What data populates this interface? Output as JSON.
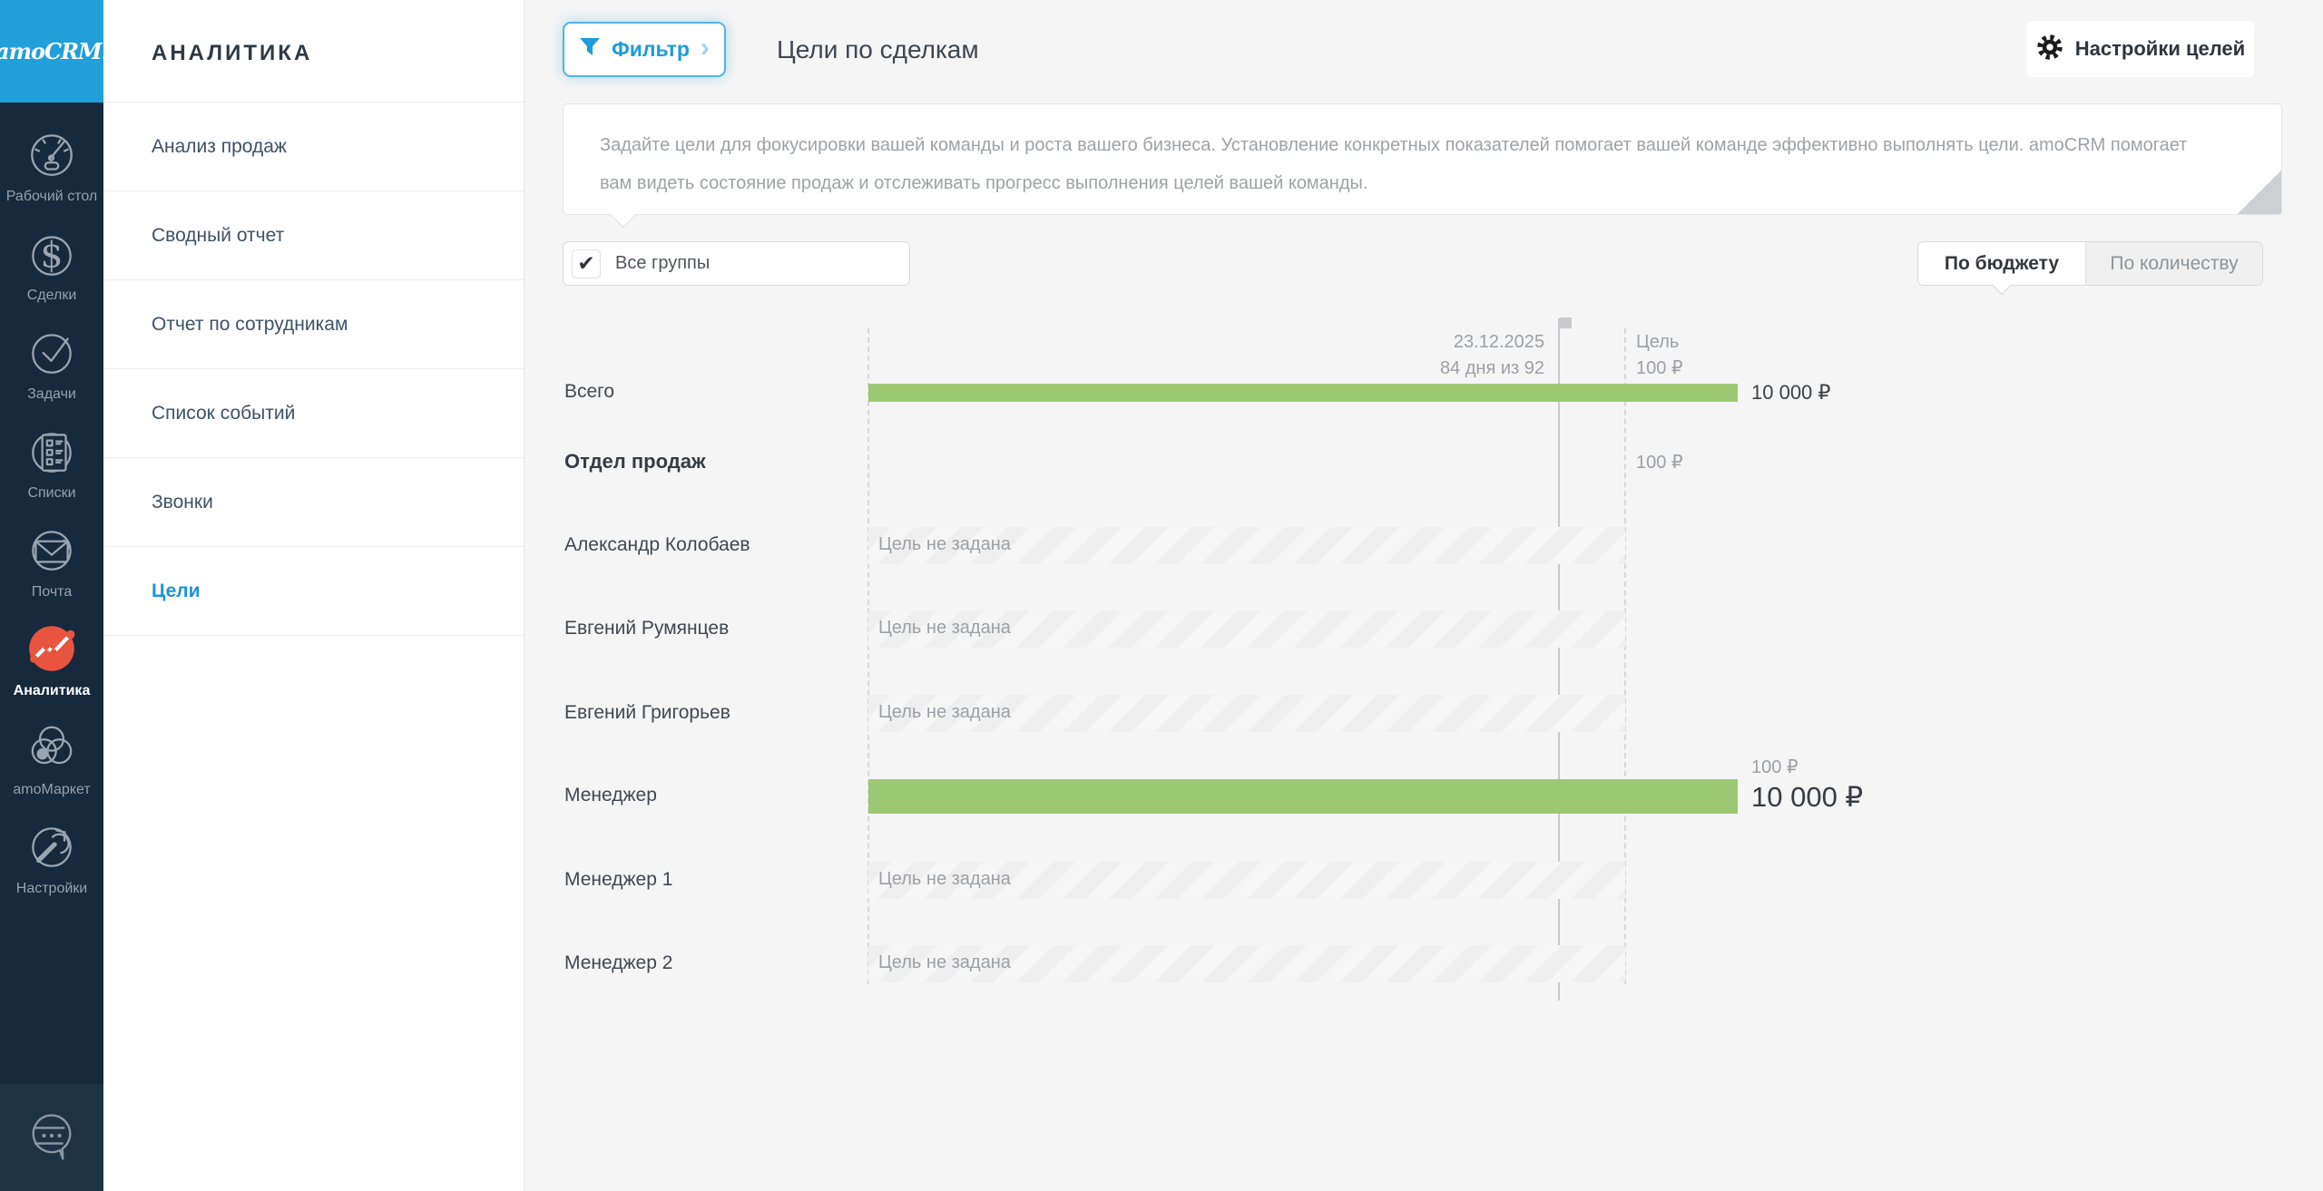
{
  "app": {
    "logo_text": "amoCRM."
  },
  "nav": {
    "items": [
      {
        "icon": "dashboard-icon",
        "label": "Рабочий стол",
        "active": false
      },
      {
        "icon": "deals-icon",
        "label": "Сделки",
        "active": false
      },
      {
        "icon": "tasks-icon",
        "label": "Задачи",
        "active": false
      },
      {
        "icon": "lists-icon",
        "label": "Списки",
        "active": false
      },
      {
        "icon": "mail-icon",
        "label": "Почта",
        "active": false
      },
      {
        "icon": "analytics-icon",
        "label": "Аналитика",
        "active": true
      },
      {
        "icon": "market-icon",
        "label": "amoМаркет",
        "active": false
      },
      {
        "icon": "settings-icon",
        "label": "Настройки",
        "active": false
      }
    ]
  },
  "sidebar": {
    "title": "АНАЛИТИКА",
    "items": [
      {
        "label": "Анализ продаж",
        "active": false
      },
      {
        "label": "Сводный отчет",
        "active": false
      },
      {
        "label": "Отчет по сотрудникам",
        "active": false
      },
      {
        "label": "Список событий",
        "active": false
      },
      {
        "label": "Звонки",
        "active": false
      },
      {
        "label": "Цели",
        "active": true
      }
    ]
  },
  "toolbar": {
    "filter_label": "Фильтр",
    "page_title": "Цели по сделкам",
    "settings_label": "Настройки целей"
  },
  "info": {
    "text": "Задайте цели для фокусировки вашей команды и роста вашего бизнеса. Установление конкретных показателей помогает вашей команде эффективно выполнять цели. amoCRM помогает вам видеть состояние продаж и отслеживать прогресс выполнения целей вашей команды."
  },
  "controls": {
    "groups_label": "Все группы",
    "checkbox_glyph": "✔",
    "toggle_budget": "По бюджету",
    "toggle_quantity": "По количеству"
  },
  "chart_data": {
    "type": "bar",
    "orientation": "horizontal",
    "mode": "По бюджету",
    "currency": "₽",
    "today_marker": {
      "date": "23.12.2025",
      "progress": "84 дня из 92"
    },
    "goal_line": {
      "label": "Цель",
      "value_label": "100 ₽",
      "value": 100
    },
    "rows": [
      {
        "name": "Всего",
        "kind": "total",
        "value": 10000,
        "value_label": "10 000 ₽"
      },
      {
        "name": "Отдел продаж",
        "kind": "group",
        "goal": 100,
        "goal_label": "100 ₽"
      },
      {
        "name": "Александр Колобаев",
        "kind": "no-goal",
        "placeholder": "Цель не задана"
      },
      {
        "name": "Евгений Румянцев",
        "kind": "no-goal",
        "placeholder": "Цель не задана"
      },
      {
        "name": "Евгений Григорьев",
        "kind": "no-goal",
        "placeholder": "Цель не задана"
      },
      {
        "name": "Менеджер",
        "kind": "person-value",
        "value": 10000,
        "value_label": "10 000 ₽",
        "goal": 100,
        "goal_label": "100 ₽"
      },
      {
        "name": "Менеджер 1",
        "kind": "no-goal",
        "placeholder": "Цель не задана"
      },
      {
        "name": "Менеджер 2",
        "kind": "no-goal",
        "placeholder": "Цель не задана"
      }
    ],
    "colors": {
      "bar_green": "#9CC873",
      "goal_stripe": "#EFEFF0",
      "marker_line": "#C9C9CB"
    }
  }
}
